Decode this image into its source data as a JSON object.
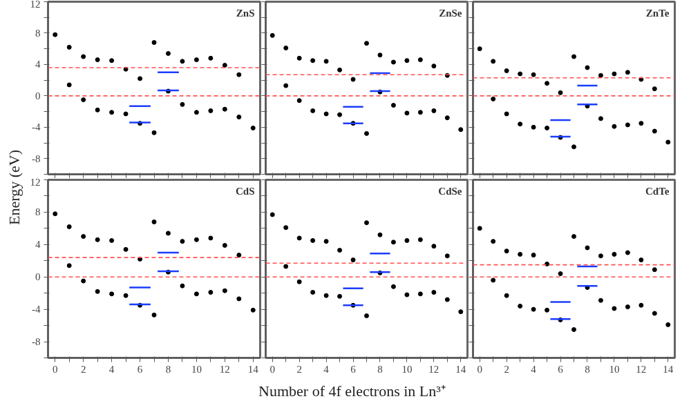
{
  "chart_data": [
    {
      "type": "scatter",
      "title": "ZnS",
      "ylabel": "Energy (eV)",
      "marker": "circle",
      "grid": false,
      "tick_labels": "y",
      "xlim": [
        -0.5,
        14.5
      ],
      "ylim": [
        -10,
        12
      ],
      "xticks": [
        0,
        {
          "value": 1,
          "label": null
        },
        2,
        {
          "value": 3,
          "label": null
        },
        4,
        {
          "value": 5,
          "label": null
        },
        6,
        {
          "value": 7,
          "label": null
        },
        8,
        {
          "value": 9,
          "label": null
        },
        10,
        {
          "value": 11,
          "label": null
        },
        12,
        {
          "value": 13,
          "label": null
        },
        14
      ],
      "yticks": [
        {
          "value": -10,
          "label": null
        },
        -8,
        {
          "value": -6,
          "label": null
        },
        -4,
        {
          "value": -2,
          "label": null
        },
        0,
        {
          "value": 2,
          "label": null
        },
        4,
        {
          "value": 6,
          "label": null
        },
        8,
        {
          "value": 10,
          "label": null
        },
        12
      ],
      "series": [
        {
          "type": "scatter",
          "color": "#000000",
          "x": [
            0,
            1,
            2,
            3,
            4,
            5,
            6,
            7,
            8,
            9,
            10,
            11,
            12,
            13
          ],
          "values": [
            7.8,
            6.2,
            5.0,
            4.6,
            4.5,
            3.4,
            2.2,
            6.8,
            5.4,
            4.4,
            4.6,
            4.8,
            3.9,
            2.7
          ]
        },
        {
          "type": "scatter",
          "color": "#000000",
          "x": [
            1,
            2,
            3,
            4,
            5,
            6,
            7,
            8,
            9,
            10,
            11,
            12,
            13,
            14
          ],
          "values": [
            1.4,
            -0.5,
            -1.8,
            -2.1,
            -2.3,
            -3.5,
            -4.7,
            0.6,
            -1.1,
            -2.1,
            -1.9,
            -1.7,
            -2.7,
            -4.1
          ]
        },
        {
          "type": "line",
          "marker": "none",
          "color": "#1a3cff",
          "x": [
            5.25,
            6.75
          ],
          "values": [
            -1.3,
            -1.3
          ]
        },
        {
          "type": "line",
          "marker": "none",
          "color": "#1a3cff",
          "x": [
            5.25,
            6.75
          ],
          "values": [
            -3.4,
            -3.4
          ]
        },
        {
          "type": "line",
          "marker": "none",
          "color": "#1a3cff",
          "x": [
            7.25,
            8.75
          ],
          "values": [
            3.0,
            3.0
          ]
        },
        {
          "type": "line",
          "marker": "none",
          "color": "#1a3cff",
          "x": [
            7.25,
            8.75
          ],
          "values": [
            0.7,
            0.7
          ]
        }
      ],
      "ref_lines": [
        {
          "axis": "y",
          "value": 0,
          "color": "#ff5050",
          "line_style": "dashed"
        },
        {
          "axis": "y",
          "value": 3.6,
          "color": "#ff5050",
          "line_style": "dashed"
        }
      ]
    },
    {
      "type": "scatter",
      "title": "ZnSe",
      "marker": "circle",
      "grid": false,
      "tick_labels": false,
      "xlim": [
        -0.5,
        14.5
      ],
      "ylim": [
        -10,
        12
      ],
      "xticks": [
        0,
        {
          "value": 1,
          "label": null
        },
        2,
        {
          "value": 3,
          "label": null
        },
        4,
        {
          "value": 5,
          "label": null
        },
        6,
        {
          "value": 7,
          "label": null
        },
        8,
        {
          "value": 9,
          "label": null
        },
        10,
        {
          "value": 11,
          "label": null
        },
        12,
        {
          "value": 13,
          "label": null
        },
        14
      ],
      "yticks": [
        {
          "value": -10,
          "label": null
        },
        -8,
        {
          "value": -6,
          "label": null
        },
        -4,
        {
          "value": -2,
          "label": null
        },
        0,
        {
          "value": 2,
          "label": null
        },
        4,
        {
          "value": 6,
          "label": null
        },
        8,
        {
          "value": 10,
          "label": null
        },
        12
      ],
      "series": [
        {
          "type": "scatter",
          "color": "#000000",
          "x": [
            0,
            1,
            2,
            3,
            4,
            5,
            6,
            7,
            8,
            9,
            10,
            11,
            12,
            13
          ],
          "values": [
            7.7,
            6.1,
            4.8,
            4.5,
            4.4,
            3.3,
            2.1,
            6.7,
            5.2,
            4.3,
            4.5,
            4.6,
            3.8,
            2.6
          ]
        },
        {
          "type": "scatter",
          "color": "#000000",
          "x": [
            1,
            2,
            3,
            4,
            5,
            6,
            7,
            8,
            9,
            10,
            11,
            12,
            13,
            14
          ],
          "values": [
            1.3,
            -0.6,
            -1.9,
            -2.3,
            -2.4,
            -3.5,
            -4.8,
            0.5,
            -1.2,
            -2.2,
            -2.1,
            -1.9,
            -2.8,
            -4.3
          ]
        },
        {
          "type": "line",
          "marker": "none",
          "color": "#1a3cff",
          "x": [
            5.25,
            6.75
          ],
          "values": [
            -1.4,
            -1.4
          ]
        },
        {
          "type": "line",
          "marker": "none",
          "color": "#1a3cff",
          "x": [
            5.25,
            6.75
          ],
          "values": [
            -3.5,
            -3.5
          ]
        },
        {
          "type": "line",
          "marker": "none",
          "color": "#1a3cff",
          "x": [
            7.25,
            8.75
          ],
          "values": [
            2.9,
            2.9
          ]
        },
        {
          "type": "line",
          "marker": "none",
          "color": "#1a3cff",
          "x": [
            7.25,
            8.75
          ],
          "values": [
            0.6,
            0.6
          ]
        }
      ],
      "ref_lines": [
        {
          "axis": "y",
          "value": 0,
          "color": "#ff5050",
          "line_style": "dashed"
        },
        {
          "axis": "y",
          "value": 2.7,
          "color": "#ff5050",
          "line_style": "dashed"
        }
      ]
    },
    {
      "type": "scatter",
      "title": "ZnTe",
      "marker": "circle",
      "grid": false,
      "tick_labels": false,
      "xlim": [
        -0.5,
        14.5
      ],
      "ylim": [
        -10,
        12
      ],
      "xticks": [
        0,
        {
          "value": 1,
          "label": null
        },
        2,
        {
          "value": 3,
          "label": null
        },
        4,
        {
          "value": 5,
          "label": null
        },
        6,
        {
          "value": 7,
          "label": null
        },
        8,
        {
          "value": 9,
          "label": null
        },
        10,
        {
          "value": 11,
          "label": null
        },
        12,
        {
          "value": 13,
          "label": null
        },
        14
      ],
      "yticks": [
        {
          "value": -10,
          "label": null
        },
        -8,
        {
          "value": -6,
          "label": null
        },
        -4,
        {
          "value": -2,
          "label": null
        },
        0,
        {
          "value": 2,
          "label": null
        },
        4,
        {
          "value": 6,
          "label": null
        },
        8,
        {
          "value": 10,
          "label": null
        },
        12
      ],
      "series": [
        {
          "type": "scatter",
          "color": "#000000",
          "x": [
            0,
            1,
            2,
            3,
            4,
            5,
            6,
            7,
            8,
            9,
            10,
            11,
            12,
            13
          ],
          "values": [
            6.0,
            4.4,
            3.2,
            2.8,
            2.7,
            1.6,
            0.4,
            5.0,
            3.6,
            2.6,
            2.8,
            3.0,
            2.1,
            0.9
          ]
        },
        {
          "type": "scatter",
          "color": "#000000",
          "x": [
            1,
            2,
            3,
            4,
            5,
            6,
            7,
            8,
            9,
            10,
            11,
            12,
            13,
            14
          ],
          "values": [
            -0.4,
            -2.3,
            -3.6,
            -4.0,
            -4.1,
            -5.3,
            -6.5,
            -1.3,
            -2.9,
            -3.9,
            -3.7,
            -3.5,
            -4.5,
            -5.9
          ]
        },
        {
          "type": "line",
          "marker": "none",
          "color": "#1a3cff",
          "x": [
            5.25,
            6.75
          ],
          "values": [
            -3.1,
            -3.1
          ]
        },
        {
          "type": "line",
          "marker": "none",
          "color": "#1a3cff",
          "x": [
            5.25,
            6.75
          ],
          "values": [
            -5.2,
            -5.2
          ]
        },
        {
          "type": "line",
          "marker": "none",
          "color": "#1a3cff",
          "x": [
            7.25,
            8.75
          ],
          "values": [
            1.3,
            1.3
          ]
        },
        {
          "type": "line",
          "marker": "none",
          "color": "#1a3cff",
          "x": [
            7.25,
            8.75
          ],
          "values": [
            -1.1,
            -1.1
          ]
        }
      ],
      "ref_lines": [
        {
          "axis": "y",
          "value": 0,
          "color": "#ff5050",
          "line_style": "dashed"
        },
        {
          "axis": "y",
          "value": 2.3,
          "color": "#ff5050",
          "line_style": "dashed"
        }
      ]
    },
    {
      "type": "scatter",
      "title": "CdS",
      "marker": "circle",
      "grid": false,
      "xlim": [
        -0.5,
        14.5
      ],
      "ylim": [
        -10,
        12
      ],
      "xticks": [
        0,
        {
          "value": 1,
          "label": null
        },
        2,
        {
          "value": 3,
          "label": null
        },
        4,
        {
          "value": 5,
          "label": null
        },
        6,
        {
          "value": 7,
          "label": null
        },
        8,
        {
          "value": 9,
          "label": null
        },
        10,
        {
          "value": 11,
          "label": null
        },
        12,
        {
          "value": 13,
          "label": null
        },
        14
      ],
      "yticks": [
        {
          "value": -10,
          "label": null
        },
        -8,
        {
          "value": -6,
          "label": null
        },
        -4,
        {
          "value": -2,
          "label": null
        },
        0,
        {
          "value": 2,
          "label": null
        },
        4,
        {
          "value": 6,
          "label": null
        },
        8,
        {
          "value": 10,
          "label": null
        },
        12
      ],
      "series": [
        {
          "type": "scatter",
          "color": "#000000",
          "x": [
            0,
            1,
            2,
            3,
            4,
            5,
            6,
            7,
            8,
            9,
            10,
            11,
            12,
            13
          ],
          "values": [
            7.8,
            6.2,
            5.0,
            4.6,
            4.5,
            3.4,
            2.2,
            6.8,
            5.4,
            4.4,
            4.6,
            4.8,
            3.9,
            2.7
          ]
        },
        {
          "type": "scatter",
          "color": "#000000",
          "x": [
            1,
            2,
            3,
            4,
            5,
            6,
            7,
            8,
            9,
            10,
            11,
            12,
            13,
            14
          ],
          "values": [
            1.4,
            -0.5,
            -1.8,
            -2.1,
            -2.3,
            -3.5,
            -4.7,
            0.6,
            -1.1,
            -2.1,
            -1.9,
            -1.7,
            -2.7,
            -4.1
          ]
        },
        {
          "type": "line",
          "marker": "none",
          "color": "#1a3cff",
          "x": [
            5.25,
            6.75
          ],
          "values": [
            -1.3,
            -1.3
          ]
        },
        {
          "type": "line",
          "marker": "none",
          "color": "#1a3cff",
          "x": [
            5.25,
            6.75
          ],
          "values": [
            -3.4,
            -3.4
          ]
        },
        {
          "type": "line",
          "marker": "none",
          "color": "#1a3cff",
          "x": [
            7.25,
            8.75
          ],
          "values": [
            3.0,
            3.0
          ]
        },
        {
          "type": "line",
          "marker": "none",
          "color": "#1a3cff",
          "x": [
            7.25,
            8.75
          ],
          "values": [
            0.7,
            0.7
          ]
        }
      ],
      "ref_lines": [
        {
          "axis": "y",
          "value": 0,
          "color": "#ff5050",
          "line_style": "dashed"
        },
        {
          "axis": "y",
          "value": 2.4,
          "color": "#ff5050",
          "line_style": "dashed"
        }
      ]
    },
    {
      "type": "scatter",
      "title": "CdSe",
      "xlabel": "Number of 4f electrons in Ln³⁺",
      "marker": "circle",
      "grid": false,
      "tick_labels": "x",
      "xlim": [
        -0.5,
        14.5
      ],
      "ylim": [
        -10,
        12
      ],
      "xticks": [
        0,
        {
          "value": 1,
          "label": null
        },
        2,
        {
          "value": 3,
          "label": null
        },
        4,
        {
          "value": 5,
          "label": null
        },
        6,
        {
          "value": 7,
          "label": null
        },
        8,
        {
          "value": 9,
          "label": null
        },
        10,
        {
          "value": 11,
          "label": null
        },
        12,
        {
          "value": 13,
          "label": null
        },
        14
      ],
      "yticks": [
        {
          "value": -10,
          "label": null
        },
        -8,
        {
          "value": -6,
          "label": null
        },
        -4,
        {
          "value": -2,
          "label": null
        },
        0,
        {
          "value": 2,
          "label": null
        },
        4,
        {
          "value": 6,
          "label": null
        },
        8,
        {
          "value": 10,
          "label": null
        },
        12
      ],
      "series": [
        {
          "type": "scatter",
          "color": "#000000",
          "x": [
            0,
            1,
            2,
            3,
            4,
            5,
            6,
            7,
            8,
            9,
            10,
            11,
            12,
            13
          ],
          "values": [
            7.7,
            6.1,
            4.8,
            4.5,
            4.4,
            3.3,
            2.1,
            6.7,
            5.2,
            4.3,
            4.5,
            4.6,
            3.8,
            2.6
          ]
        },
        {
          "type": "scatter",
          "color": "#000000",
          "x": [
            1,
            2,
            3,
            4,
            5,
            6,
            7,
            8,
            9,
            10,
            11,
            12,
            13,
            14
          ],
          "values": [
            1.3,
            -0.6,
            -1.9,
            -2.3,
            -2.4,
            -3.5,
            -4.8,
            0.5,
            -1.2,
            -2.2,
            -2.1,
            -1.9,
            -2.8,
            -4.3
          ]
        },
        {
          "type": "line",
          "marker": "none",
          "color": "#1a3cff",
          "x": [
            5.25,
            6.75
          ],
          "values": [
            -1.4,
            -1.4
          ]
        },
        {
          "type": "line",
          "marker": "none",
          "color": "#1a3cff",
          "x": [
            5.25,
            6.75
          ],
          "values": [
            -3.5,
            -3.5
          ]
        },
        {
          "type": "line",
          "marker": "none",
          "color": "#1a3cff",
          "x": [
            7.25,
            8.75
          ],
          "values": [
            2.9,
            2.9
          ]
        },
        {
          "type": "line",
          "marker": "none",
          "color": "#1a3cff",
          "x": [
            7.25,
            8.75
          ],
          "values": [
            0.6,
            0.6
          ]
        }
      ],
      "ref_lines": [
        {
          "axis": "y",
          "value": 0,
          "color": "#ff5050",
          "line_style": "dashed"
        },
        {
          "axis": "y",
          "value": 1.7,
          "color": "#ff5050",
          "line_style": "dashed"
        }
      ]
    },
    {
      "type": "scatter",
      "title": "CdTe",
      "marker": "circle",
      "grid": false,
      "tick_labels": "x",
      "xlim": [
        -0.5,
        14.5
      ],
      "ylim": [
        -10,
        12
      ],
      "xticks": [
        0,
        {
          "value": 1,
          "label": null
        },
        2,
        {
          "value": 3,
          "label": null
        },
        4,
        {
          "value": 5,
          "label": null
        },
        6,
        {
          "value": 7,
          "label": null
        },
        8,
        {
          "value": 9,
          "label": null
        },
        10,
        {
          "value": 11,
          "label": null
        },
        12,
        {
          "value": 13,
          "label": null
        },
        14
      ],
      "yticks": [
        {
          "value": -10,
          "label": null
        },
        -8,
        {
          "value": -6,
          "label": null
        },
        -4,
        {
          "value": -2,
          "label": null
        },
        0,
        {
          "value": 2,
          "label": null
        },
        4,
        {
          "value": 6,
          "label": null
        },
        8,
        {
          "value": 10,
          "label": null
        },
        12
      ],
      "series": [
        {
          "type": "scatter",
          "color": "#000000",
          "x": [
            0,
            1,
            2,
            3,
            4,
            5,
            6,
            7,
            8,
            9,
            10,
            11,
            12,
            13
          ],
          "values": [
            6.0,
            4.4,
            3.2,
            2.8,
            2.7,
            1.6,
            0.4,
            5.0,
            3.6,
            2.6,
            2.8,
            3.0,
            2.1,
            0.9
          ]
        },
        {
          "type": "scatter",
          "color": "#000000",
          "x": [
            1,
            2,
            3,
            4,
            5,
            6,
            7,
            8,
            9,
            10,
            11,
            12,
            13,
            14
          ],
          "values": [
            -0.4,
            -2.3,
            -3.6,
            -4.0,
            -4.1,
            -5.3,
            -6.5,
            -1.3,
            -2.9,
            -3.9,
            -3.7,
            -3.5,
            -4.5,
            -5.9
          ]
        },
        {
          "type": "line",
          "marker": "none",
          "color": "#1a3cff",
          "x": [
            5.25,
            6.75
          ],
          "values": [
            -3.1,
            -3.1
          ]
        },
        {
          "type": "line",
          "marker": "none",
          "color": "#1a3cff",
          "x": [
            5.25,
            6.75
          ],
          "values": [
            -5.2,
            -5.2
          ]
        },
        {
          "type": "line",
          "marker": "none",
          "color": "#1a3cff",
          "x": [
            7.25,
            8.75
          ],
          "values": [
            1.3,
            1.3
          ]
        },
        {
          "type": "line",
          "marker": "none",
          "color": "#1a3cff",
          "x": [
            7.25,
            8.75
          ],
          "values": [
            -1.1,
            -1.1
          ]
        }
      ],
      "ref_lines": [
        {
          "axis": "y",
          "value": 0,
          "color": "#ff5050",
          "line_style": "dashed"
        },
        {
          "axis": "y",
          "value": 1.5,
          "color": "#ff5050",
          "line_style": "dashed"
        }
      ]
    }
  ]
}
